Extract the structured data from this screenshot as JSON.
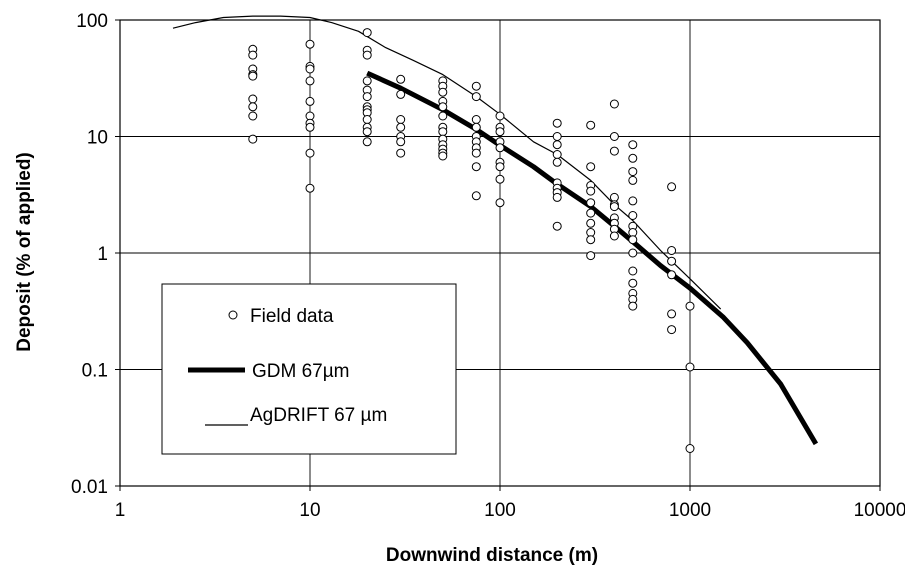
{
  "chart_data": {
    "type": "scatter",
    "xlabel": "Downwind distance (m)",
    "ylabel": "Deposit (% of applied)",
    "x_scale": "log",
    "y_scale": "log",
    "xlim": [
      1,
      10000
    ],
    "ylim": [
      0.01,
      100
    ],
    "x_ticks": [
      "1",
      "10",
      "100",
      "1000",
      "10000"
    ],
    "y_ticks": [
      "0.01",
      "0.1",
      "1",
      "10",
      "100"
    ],
    "grid": true,
    "legend_position": "bottom-left",
    "series": [
      {
        "name": "Field data",
        "kind": "points",
        "points": [
          [
            5,
            56
          ],
          [
            5,
            50
          ],
          [
            5,
            38
          ],
          [
            5,
            34
          ],
          [
            5,
            33
          ],
          [
            5,
            21
          ],
          [
            5,
            18
          ],
          [
            5,
            15
          ],
          [
            5,
            9.5
          ],
          [
            10,
            62
          ],
          [
            10,
            40
          ],
          [
            10,
            38
          ],
          [
            10,
            30
          ],
          [
            10,
            20
          ],
          [
            10,
            15
          ],
          [
            10,
            13
          ],
          [
            10,
            12
          ],
          [
            10,
            7.2
          ],
          [
            10,
            3.6
          ],
          [
            20,
            78
          ],
          [
            20,
            55
          ],
          [
            20,
            50
          ],
          [
            20,
            30
          ],
          [
            20,
            25
          ],
          [
            20,
            22
          ],
          [
            20,
            18
          ],
          [
            20,
            17
          ],
          [
            20,
            16
          ],
          [
            20,
            14
          ],
          [
            20,
            12
          ],
          [
            20,
            11
          ],
          [
            20,
            9
          ],
          [
            30,
            31
          ],
          [
            30,
            23
          ],
          [
            30,
            14
          ],
          [
            30,
            12
          ],
          [
            30,
            10
          ],
          [
            30,
            9
          ],
          [
            30,
            7.2
          ],
          [
            50,
            30
          ],
          [
            50,
            27
          ],
          [
            50,
            24
          ],
          [
            50,
            20
          ],
          [
            50,
            18
          ],
          [
            50,
            15
          ],
          [
            50,
            12
          ],
          [
            50,
            11
          ],
          [
            50,
            9.5
          ],
          [
            50,
            8.5
          ],
          [
            50,
            7.8
          ],
          [
            50,
            7.2
          ],
          [
            50,
            6.8
          ],
          [
            75,
            27
          ],
          [
            75,
            22
          ],
          [
            75,
            14
          ],
          [
            75,
            12
          ],
          [
            75,
            10
          ],
          [
            75,
            9
          ],
          [
            75,
            8
          ],
          [
            75,
            7.2
          ],
          [
            75,
            5.5
          ],
          [
            75,
            3.1
          ],
          [
            100,
            15
          ],
          [
            100,
            12
          ],
          [
            100,
            11
          ],
          [
            100,
            9
          ],
          [
            100,
            8
          ],
          [
            100,
            6
          ],
          [
            100,
            5.5
          ],
          [
            100,
            4.3
          ],
          [
            100,
            2.7
          ],
          [
            200,
            13
          ],
          [
            200,
            10
          ],
          [
            200,
            8.5
          ],
          [
            200,
            7
          ],
          [
            200,
            6
          ],
          [
            200,
            4
          ],
          [
            200,
            3.6
          ],
          [
            200,
            3.3
          ],
          [
            200,
            3
          ],
          [
            200,
            1.7
          ],
          [
            300,
            12.5
          ],
          [
            300,
            5.5
          ],
          [
            300,
            3.8
          ],
          [
            300,
            3.4
          ],
          [
            300,
            2.7
          ],
          [
            300,
            2.2
          ],
          [
            300,
            1.8
          ],
          [
            300,
            1.5
          ],
          [
            300,
            1.3
          ],
          [
            300,
            0.95
          ],
          [
            400,
            19
          ],
          [
            400,
            10
          ],
          [
            400,
            7.5
          ],
          [
            400,
            3
          ],
          [
            400,
            2.6
          ],
          [
            400,
            2.5
          ],
          [
            400,
            2
          ],
          [
            400,
            1.8
          ],
          [
            400,
            1.6
          ],
          [
            400,
            1.4
          ],
          [
            500,
            8.5
          ],
          [
            500,
            6.5
          ],
          [
            500,
            5
          ],
          [
            500,
            4.2
          ],
          [
            500,
            2.8
          ],
          [
            500,
            2.1
          ],
          [
            500,
            1.7
          ],
          [
            500,
            1.5
          ],
          [
            500,
            1.3
          ],
          [
            500,
            1
          ],
          [
            500,
            0.7
          ],
          [
            500,
            0.55
          ],
          [
            500,
            0.45
          ],
          [
            500,
            0.4
          ],
          [
            500,
            0.35
          ],
          [
            800,
            3.7
          ],
          [
            800,
            1.05
          ],
          [
            800,
            0.85
          ],
          [
            800,
            0.65
          ],
          [
            800,
            0.3
          ],
          [
            800,
            0.22
          ],
          [
            1000,
            0.35
          ],
          [
            1000,
            0.105
          ],
          [
            1000,
            0.021
          ]
        ]
      },
      {
        "name": "GDM 67µm",
        "kind": "line",
        "color": "#000000",
        "points": [
          [
            20,
            35
          ],
          [
            30,
            26
          ],
          [
            50,
            17
          ],
          [
            75,
            11.5
          ],
          [
            100,
            8.4
          ],
          [
            150,
            5.5
          ],
          [
            200,
            3.9
          ],
          [
            300,
            2.5
          ],
          [
            400,
            1.7
          ],
          [
            500,
            1.25
          ],
          [
            700,
            0.78
          ],
          [
            1000,
            0.5
          ],
          [
            1500,
            0.28
          ],
          [
            2000,
            0.17
          ],
          [
            3000,
            0.075
          ],
          [
            4600,
            0.023
          ]
        ]
      },
      {
        "name": "AgDRIFT 67 µm",
        "kind": "line",
        "color": "#000000",
        "points": [
          [
            1.9,
            85
          ],
          [
            2.5,
            95
          ],
          [
            3.5,
            105
          ],
          [
            5,
            108
          ],
          [
            7,
            108
          ],
          [
            10,
            105
          ],
          [
            13,
            95
          ],
          [
            18,
            80
          ],
          [
            25,
            58
          ],
          [
            35,
            45
          ],
          [
            50,
            34
          ],
          [
            75,
            22
          ],
          [
            100,
            15.5
          ],
          [
            150,
            9
          ],
          [
            200,
            7
          ],
          [
            300,
            4.2
          ],
          [
            400,
            2.6
          ],
          [
            500,
            1.9
          ],
          [
            700,
            1.05
          ],
          [
            1000,
            0.6
          ],
          [
            1450,
            0.33
          ]
        ]
      }
    ]
  }
}
